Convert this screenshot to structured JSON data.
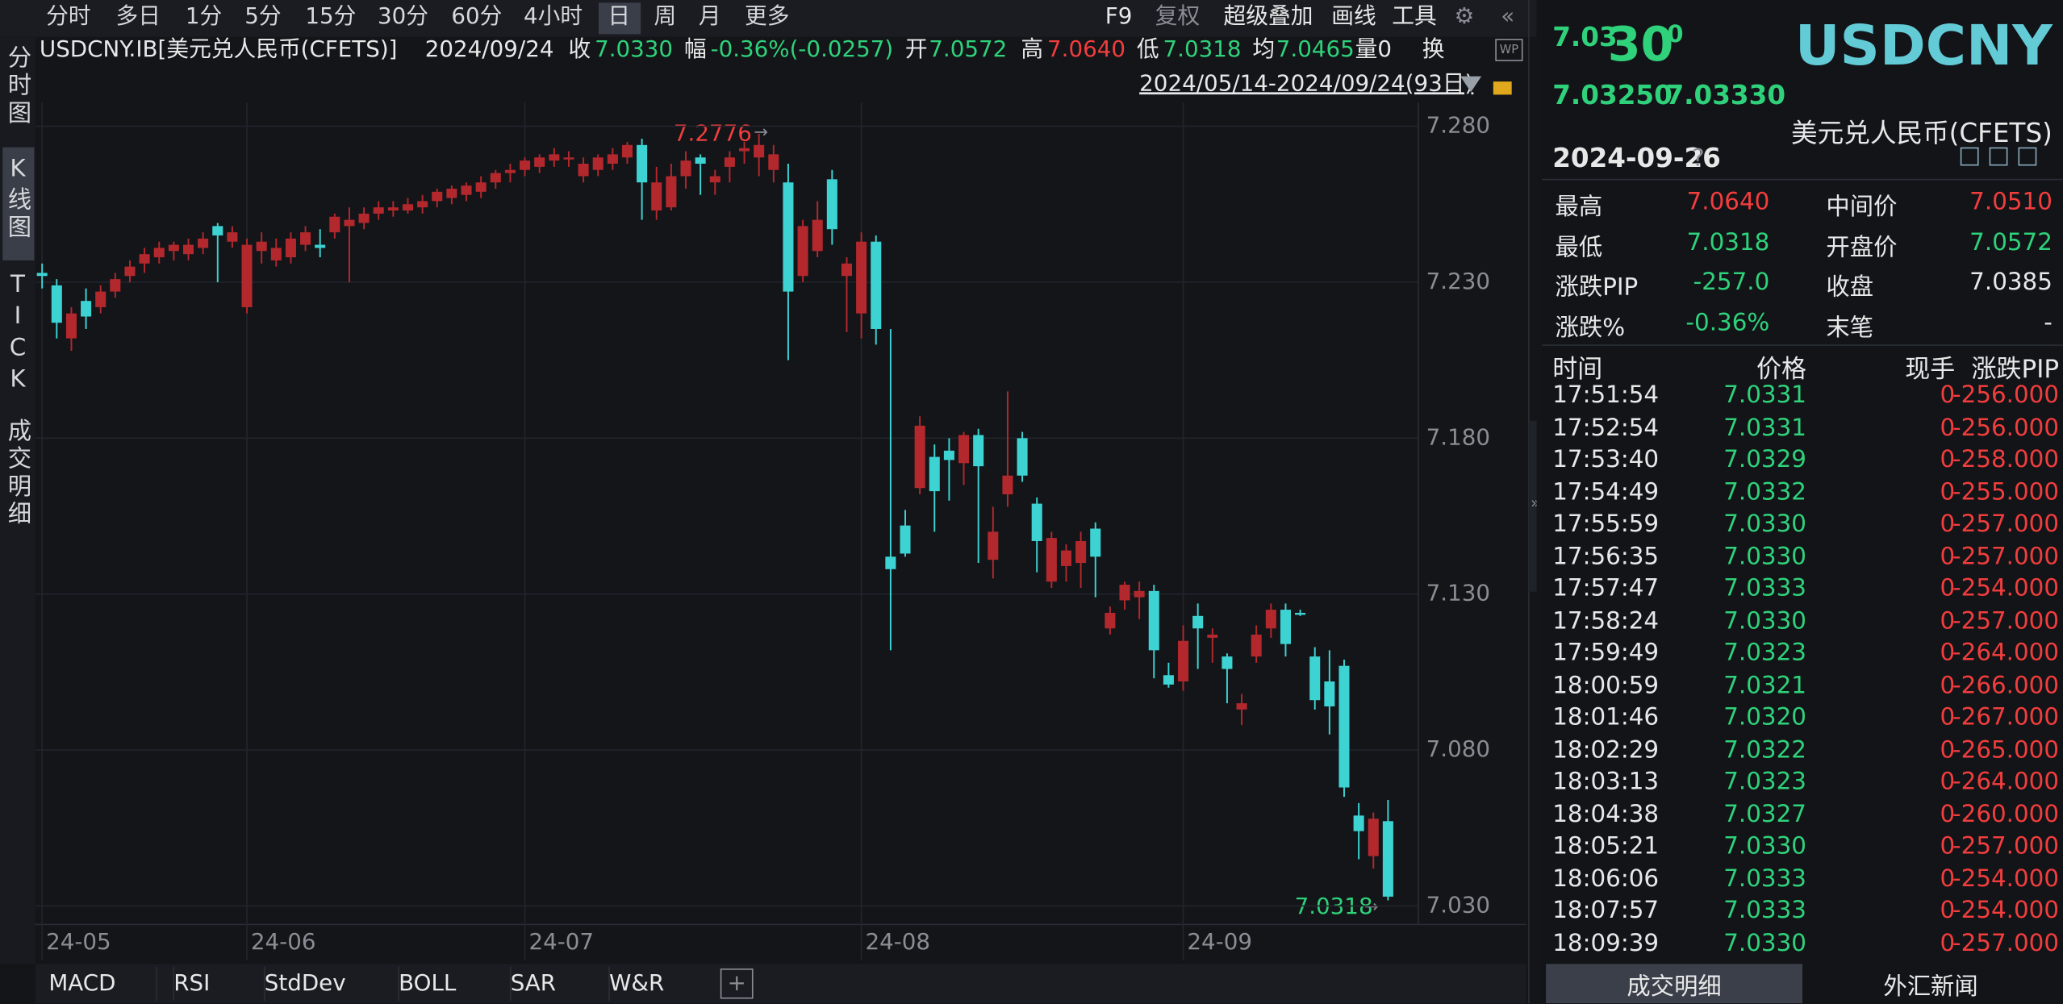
{
  "toolbar": {
    "periods": [
      "分时",
      "多日",
      "1分",
      "5分",
      "15分",
      "30分",
      "60分",
      "4小时",
      "日",
      "周",
      "月",
      "更多"
    ],
    "tools": [
      "F9",
      "复权",
      "超级叠加",
      "画线",
      "工具"
    ]
  },
  "side_tabs": [
    "分时图",
    "K线图",
    "TICK",
    "成交明细"
  ],
  "quote_bar": {
    "symbol": "USDCNY.IB[美元兑人民币(CFETS)]",
    "date": "2024/09/24",
    "close_label": "收",
    "close": "7.0330",
    "change_label": "幅",
    "change": "-0.36%(-0.0257)",
    "open_label": "开",
    "open": "7.0572",
    "high_label": "高",
    "high": "7.0640",
    "low_label": "低",
    "low": "7.0318",
    "avg_label": "均",
    "avg": "7.0465",
    "volume": "量0",
    "turnover": "换"
  },
  "range": "2024/05/14-2024/09/24(93日)",
  "chart_data": {
    "type": "candlestick",
    "categories": [
      "24-05",
      null,
      null,
      null,
      null,
      null,
      null,
      null,
      null,
      null,
      null,
      null,
      null,
      null,
      "24-06",
      null,
      null,
      null,
      null,
      null,
      null,
      null,
      null,
      null,
      null,
      null,
      null,
      null,
      null,
      null,
      null,
      null,
      null,
      "24-07",
      null,
      null,
      null,
      null,
      null,
      null,
      null,
      null,
      null,
      null,
      null,
      null,
      null,
      null,
      null,
      null,
      null,
      null,
      null,
      null,
      null,
      null,
      "24-08",
      null,
      null,
      null,
      null,
      null,
      null,
      null,
      null,
      null,
      null,
      null,
      null,
      null,
      null,
      null,
      null,
      null,
      null,
      null,
      null,
      null,
      "24-09",
      null,
      null,
      null,
      null,
      null,
      null,
      null,
      null,
      null,
      null,
      null,
      null,
      null,
      null
    ],
    "open": [
      7.233,
      7.229,
      7.212,
      7.224,
      7.222,
      7.227,
      7.232,
      7.236,
      7.238,
      7.24,
      7.239,
      7.241,
      7.248,
      7.243,
      7.222,
      7.24,
      7.237,
      7.238,
      7.242,
      7.242,
      7.246,
      7.248,
      7.249,
      7.252,
      7.253,
      7.253,
      7.254,
      7.256,
      7.257,
      7.258,
      7.259,
      7.262,
      7.265,
      7.266,
      7.267,
      7.269,
      7.27,
      7.264,
      7.266,
      7.268,
      7.27,
      7.274,
      7.253,
      7.254,
      7.264,
      7.27,
      7.262,
      7.267,
      7.272,
      7.27,
      7.266,
      7.262,
      7.232,
      7.24,
      7.263,
      7.232,
      7.22,
      7.243,
      7.142,
      7.152,
      7.164,
      7.174,
      7.176,
      7.172,
      7.181,
      7.141,
      7.162,
      7.18,
      7.159,
      7.134,
      7.139,
      7.14,
      7.151,
      7.119,
      7.128,
      7.129,
      7.131,
      7.104,
      7.102,
      7.123,
      7.116,
      7.11,
      7.093,
      7.11,
      7.119,
      7.125,
      7.124,
      7.11,
      7.102,
      7.107,
      7.059,
      7.046,
      7.0572
    ],
    "high": [
      7.236,
      7.231,
      7.222,
      7.228,
      7.229,
      7.233,
      7.237,
      7.241,
      7.243,
      7.243,
      7.244,
      7.246,
      7.249,
      7.248,
      7.244,
      7.246,
      7.244,
      7.246,
      7.248,
      7.247,
      7.252,
      7.254,
      7.254,
      7.256,
      7.256,
      7.257,
      7.258,
      7.26,
      7.261,
      7.262,
      7.264,
      7.266,
      7.268,
      7.27,
      7.271,
      7.273,
      7.272,
      7.27,
      7.271,
      7.273,
      7.275,
      7.276,
      7.267,
      7.268,
      7.272,
      7.271,
      7.266,
      7.272,
      7.275,
      7.2776,
      7.274,
      7.268,
      7.25,
      7.256,
      7.266,
      7.238,
      7.246,
      7.245,
      7.215,
      7.157,
      7.187,
      7.178,
      7.18,
      7.182,
      7.183,
      7.158,
      7.195,
      7.182,
      7.161,
      7.15,
      7.146,
      7.15,
      7.153,
      7.126,
      7.134,
      7.134,
      7.133,
      7.108,
      7.12,
      7.127,
      7.119,
      7.111,
      7.098,
      7.12,
      7.127,
      7.127,
      7.125,
      7.113,
      7.112,
      7.109,
      7.063,
      7.06,
      7.064
    ],
    "low": [
      7.228,
      7.212,
      7.208,
      7.215,
      7.22,
      7.225,
      7.23,
      7.233,
      7.236,
      7.237,
      7.237,
      7.239,
      7.23,
      7.241,
      7.22,
      7.236,
      7.235,
      7.236,
      7.24,
      7.238,
      7.244,
      7.23,
      7.247,
      7.25,
      7.251,
      7.252,
      7.252,
      7.254,
      7.255,
      7.256,
      7.257,
      7.26,
      7.262,
      7.264,
      7.265,
      7.267,
      7.267,
      7.262,
      7.264,
      7.266,
      7.268,
      7.25,
      7.25,
      7.253,
      7.26,
      7.258,
      7.258,
      7.262,
      7.268,
      7.264,
      7.262,
      7.205,
      7.23,
      7.238,
      7.242,
      7.214,
      7.212,
      7.21,
      7.112,
      7.142,
      7.162,
      7.15,
      7.16,
      7.165,
      7.14,
      7.135,
      7.158,
      7.166,
      7.137,
      7.132,
      7.134,
      7.132,
      7.129,
      7.117,
      7.125,
      7.122,
      7.103,
      7.1,
      7.099,
      7.106,
      7.108,
      7.095,
      7.088,
      7.108,
      7.116,
      7.11,
      7.123,
      7.093,
      7.085,
      7.065,
      7.045,
      7.042,
      7.0318
    ],
    "close": [
      7.232,
      7.217,
      7.22,
      7.219,
      7.227,
      7.231,
      7.235,
      7.239,
      7.241,
      7.242,
      7.242,
      7.244,
      7.245,
      7.246,
      7.242,
      7.243,
      7.241,
      7.244,
      7.246,
      7.241,
      7.251,
      7.25,
      7.252,
      7.254,
      7.254,
      7.255,
      7.256,
      7.259,
      7.26,
      7.261,
      7.262,
      7.265,
      7.266,
      7.269,
      7.27,
      7.271,
      7.27,
      7.268,
      7.27,
      7.271,
      7.274,
      7.262,
      7.262,
      7.264,
      7.269,
      7.268,
      7.264,
      7.27,
      7.273,
      7.274,
      7.271,
      7.227,
      7.248,
      7.25,
      7.247,
      7.236,
      7.243,
      7.215,
      7.138,
      7.143,
      7.184,
      7.163,
      7.173,
      7.181,
      7.171,
      7.15,
      7.168,
      7.168,
      7.147,
      7.148,
      7.144,
      7.147,
      7.142,
      7.124,
      7.133,
      7.131,
      7.112,
      7.101,
      7.115,
      7.119,
      7.117,
      7.106,
      7.095,
      7.117,
      7.125,
      7.114,
      7.1235,
      7.096,
      7.094,
      7.068,
      7.054,
      7.058,
      7.033
    ],
    "up_color": "#b3282d",
    "down_color": "#3dd3d3",
    "ylim": [
      7.0245,
      7.2876
    ],
    "yticks": [
      {
        "value": 7.28,
        "label": "7.280"
      },
      {
        "value": 7.23,
        "label": "7.230"
      },
      {
        "value": 7.18,
        "label": "7.180"
      },
      {
        "value": 7.13,
        "label": "7.130"
      },
      {
        "value": 7.08,
        "label": "7.080"
      },
      {
        "value": 7.03,
        "label": "7.030"
      }
    ],
    "grid": true,
    "high_label": "7.2776",
    "low_label": "7.0318"
  },
  "indicators": [
    "MACD",
    "RSI",
    "StdDev",
    "BOLL",
    "SAR",
    "W&R"
  ],
  "quote_panel": {
    "price_main": "7.03",
    "price_big": "30",
    "price_small": "0",
    "symbol": "USDCNY",
    "bid": "7.03250",
    "ask": "7.03330",
    "name": "美元兑人民币(CFETS)",
    "date": "2024-09-26",
    "help": "?",
    "stats": [
      {
        "label": "最高",
        "value": "7.0640"
      },
      {
        "label": "中间价",
        "value": "7.0510"
      },
      {
        "label": "最低",
        "value": "7.0318"
      },
      {
        "label": "开盘价",
        "value": "7.0572"
      },
      {
        "label": "涨跌PIP",
        "value": "-257.0"
      },
      {
        "label": "收盘",
        "value": "7.0385"
      },
      {
        "label": "涨跌%",
        "value": "-0.36%"
      },
      {
        "label": "末笔",
        "value": "-"
      }
    ],
    "trades": {
      "columns": [
        "时间",
        "价格",
        "现手",
        "涨跌PIP"
      ],
      "rows": [
        [
          "17:51:54",
          "7.0331",
          "0",
          "-256.000"
        ],
        [
          "17:52:54",
          "7.0331",
          "0",
          "-256.000"
        ],
        [
          "17:53:40",
          "7.0329",
          "0",
          "-258.000"
        ],
        [
          "17:54:49",
          "7.0332",
          "0",
          "-255.000"
        ],
        [
          "17:55:59",
          "7.0330",
          "0",
          "-257.000"
        ],
        [
          "17:56:35",
          "7.0330",
          "0",
          "-257.000"
        ],
        [
          "17:57:47",
          "7.0333",
          "0",
          "-254.000"
        ],
        [
          "17:58:24",
          "7.0330",
          "0",
          "-257.000"
        ],
        [
          "17:59:49",
          "7.0323",
          "0",
          "-264.000"
        ],
        [
          "18:00:59",
          "7.0321",
          "0",
          "-266.000"
        ],
        [
          "18:01:46",
          "7.0320",
          "0",
          "-267.000"
        ],
        [
          "18:02:29",
          "7.0322",
          "0",
          "-265.000"
        ],
        [
          "18:03:13",
          "7.0323",
          "0",
          "-264.000"
        ],
        [
          "18:04:38",
          "7.0327",
          "0",
          "-260.000"
        ],
        [
          "18:05:21",
          "7.0330",
          "0",
          "-257.000"
        ],
        [
          "18:06:06",
          "7.0333",
          "0",
          "-254.000"
        ],
        [
          "18:07:57",
          "7.0333",
          "0",
          "-254.000"
        ],
        [
          "18:09:39",
          "7.0330",
          "0",
          "-257.000"
        ]
      ]
    },
    "tabs": [
      "成交明细",
      "外汇新闻"
    ]
  }
}
